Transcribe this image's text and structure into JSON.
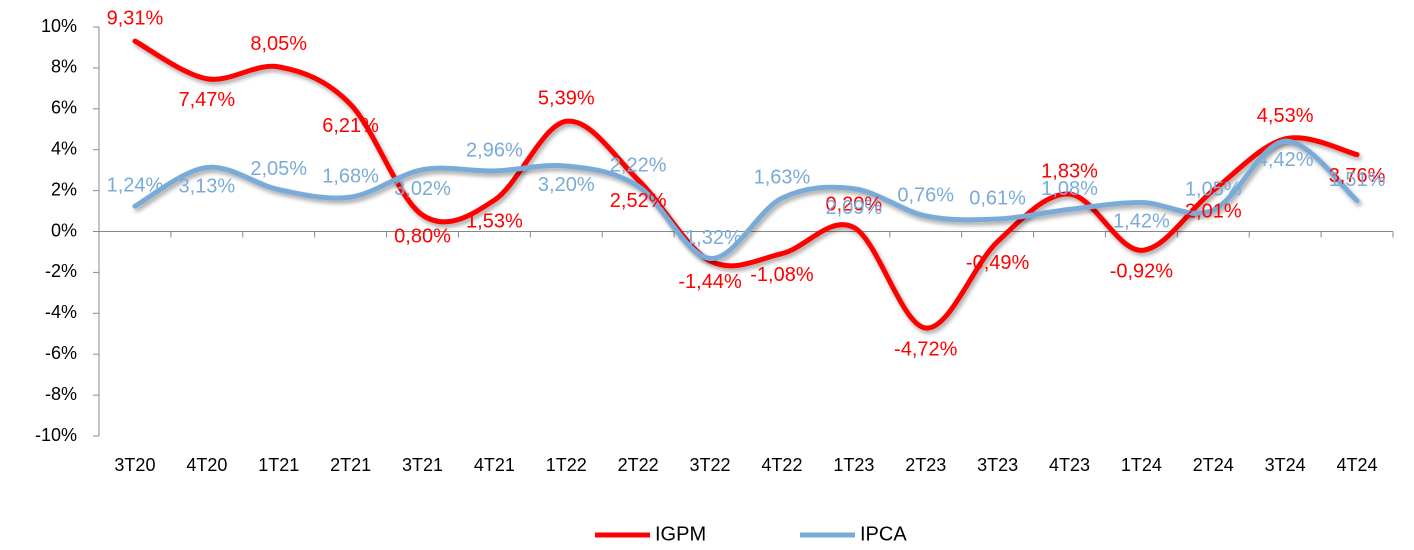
{
  "chart_data": {
    "type": "line",
    "categories": [
      "3T20",
      "4T20",
      "1T21",
      "2T21",
      "3T21",
      "4T21",
      "1T22",
      "2T22",
      "3T22",
      "4T22",
      "1T23",
      "2T23",
      "3T23",
      "4T23",
      "1T24",
      "2T24",
      "3T24",
      "4T24"
    ],
    "series": [
      {
        "name": "IGPM",
        "color": "#ff0000",
        "values": [
          9.31,
          7.47,
          8.05,
          6.21,
          0.8,
          1.53,
          5.39,
          2.52,
          -1.44,
          -1.08,
          0.2,
          -4.72,
          -0.49,
          1.83,
          -0.92,
          2.01,
          4.53,
          3.76
        ],
        "value_labels": [
          "9,31%",
          "7,47%",
          "8,05%",
          "6,21%",
          "0,80%",
          "1,53%",
          "5,39%",
          "2,52%",
          "-1,44%",
          "-1,08%",
          "0,20%",
          "-4,72%",
          "-0,49%",
          "1,83%",
          "-0,92%",
          "2,01%",
          "4,53%",
          "3,76%"
        ]
      },
      {
        "name": "IPCA",
        "color": "#7aabd8",
        "values": [
          1.24,
          3.13,
          2.05,
          1.68,
          3.02,
          2.96,
          3.2,
          2.22,
          -1.32,
          1.63,
          2.09,
          0.76,
          0.61,
          1.08,
          1.42,
          1.05,
          4.42,
          1.51
        ],
        "value_labels": [
          "1,24%",
          "3,13%",
          "2,05%",
          "1,68%",
          "3,02%",
          "2,96%",
          "3,20%",
          "2,22%",
          "-1,32%",
          "1,63%",
          "2,09%",
          "0,76%",
          "0,61%",
          "1,08%",
          "1,42%",
          "1,05%",
          "4,42%",
          "1,51%"
        ]
      }
    ],
    "ylim": [
      -10,
      10
    ],
    "yticks": [
      {
        "value": -10,
        "label": "-10%"
      },
      {
        "value": -8,
        "label": "-8%"
      },
      {
        "value": -6,
        "label": "-6%"
      },
      {
        "value": -4,
        "label": "-4%"
      },
      {
        "value": -2,
        "label": "-2%"
      },
      {
        "value": 0,
        "label": "0%"
      },
      {
        "value": 2,
        "label": "2%"
      },
      {
        "value": 4,
        "label": "4%"
      },
      {
        "value": 6,
        "label": "6%"
      },
      {
        "value": 8,
        "label": "8%"
      },
      {
        "value": 10,
        "label": "10%"
      }
    ],
    "legend": "bottom"
  }
}
